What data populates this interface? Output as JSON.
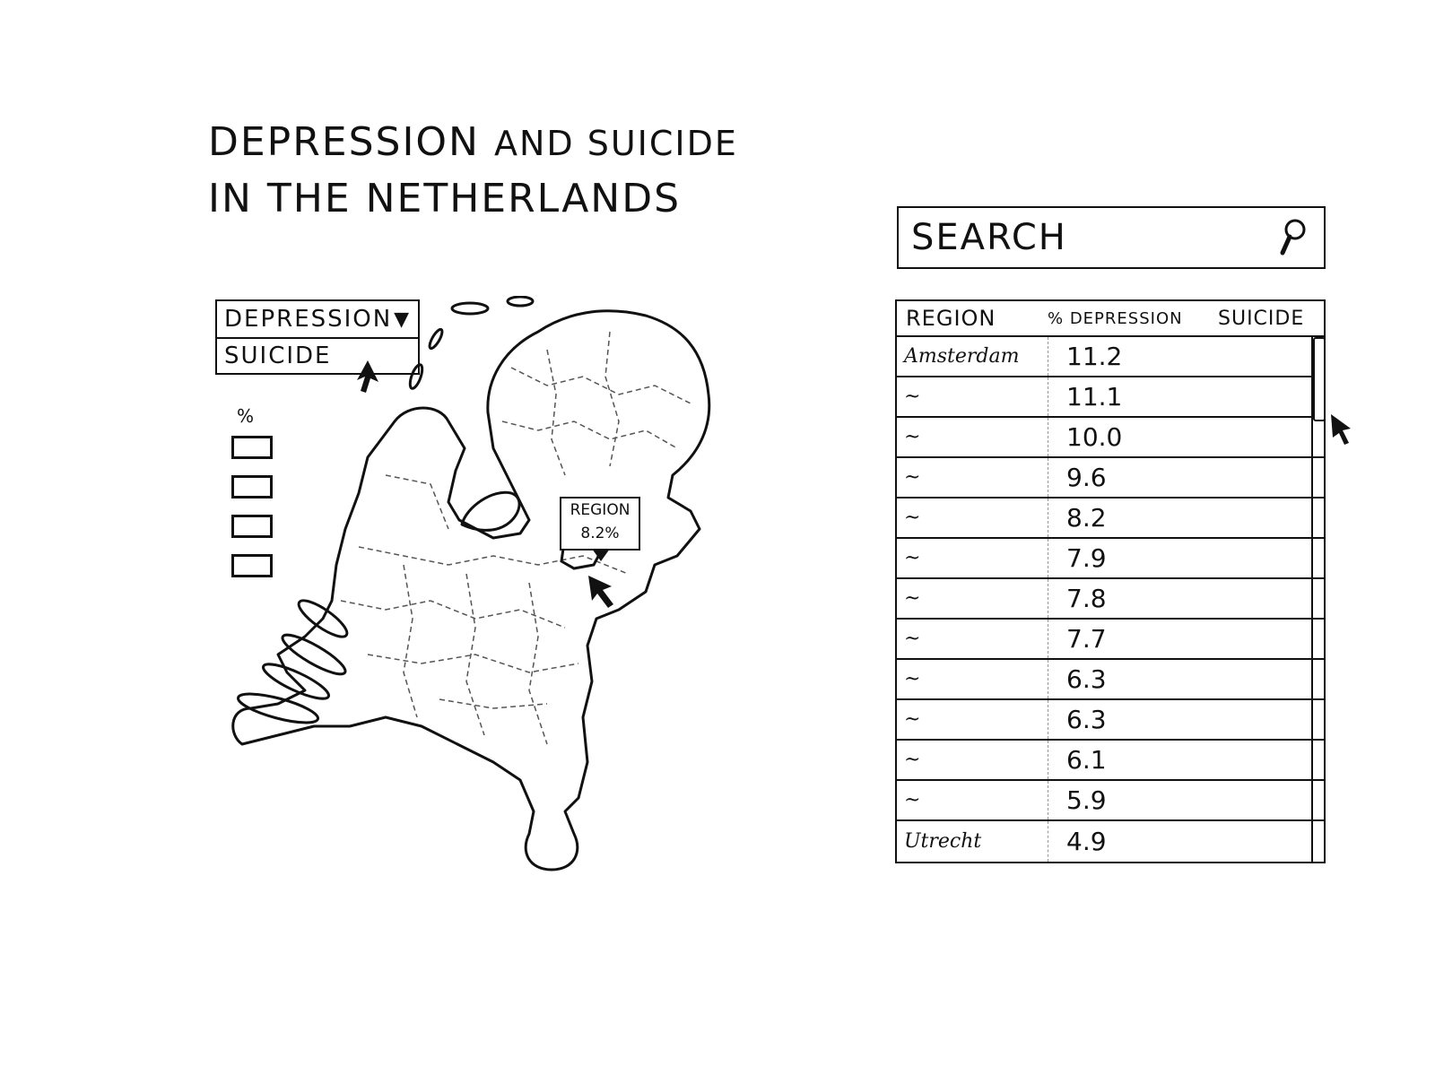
{
  "title": {
    "line1": "DEPRESSION",
    "line1b": "AND SUICIDE",
    "line2": "IN THE NETHERLANDS"
  },
  "dropdown": {
    "selected": "DEPRESSION",
    "options": [
      "SUICIDE"
    ],
    "arrow": "▼"
  },
  "legend": {
    "header": "%"
  },
  "tooltip": {
    "region": "REGION",
    "value": "8.2%"
  },
  "search": {
    "label": "SEARCH",
    "icon": "magnifier-icon"
  },
  "table": {
    "headers": {
      "region": "REGION",
      "depression": "% DEPRESSION",
      "suicide": "SUICIDE"
    },
    "rows": [
      {
        "region": "Amsterdam",
        "depression": "11.2",
        "suicide": ""
      },
      {
        "region": "~",
        "depression": "11.1",
        "suicide": ""
      },
      {
        "region": "~",
        "depression": "10.0",
        "suicide": ""
      },
      {
        "region": "~",
        "depression": "9.6",
        "suicide": ""
      },
      {
        "region": "~",
        "depression": "8.2",
        "suicide": ""
      },
      {
        "region": "~",
        "depression": "7.9",
        "suicide": ""
      },
      {
        "region": "~",
        "depression": "7.8",
        "suicide": ""
      },
      {
        "region": "~",
        "depression": "7.7",
        "suicide": ""
      },
      {
        "region": "~",
        "depression": "6.3",
        "suicide": ""
      },
      {
        "region": "~",
        "depression": "6.3",
        "suicide": ""
      },
      {
        "region": "~",
        "depression": "6.1",
        "suicide": ""
      },
      {
        "region": "~",
        "depression": "5.9",
        "suicide": ""
      },
      {
        "region": "Utrecht",
        "depression": "4.9",
        "suicide": ""
      }
    ]
  }
}
